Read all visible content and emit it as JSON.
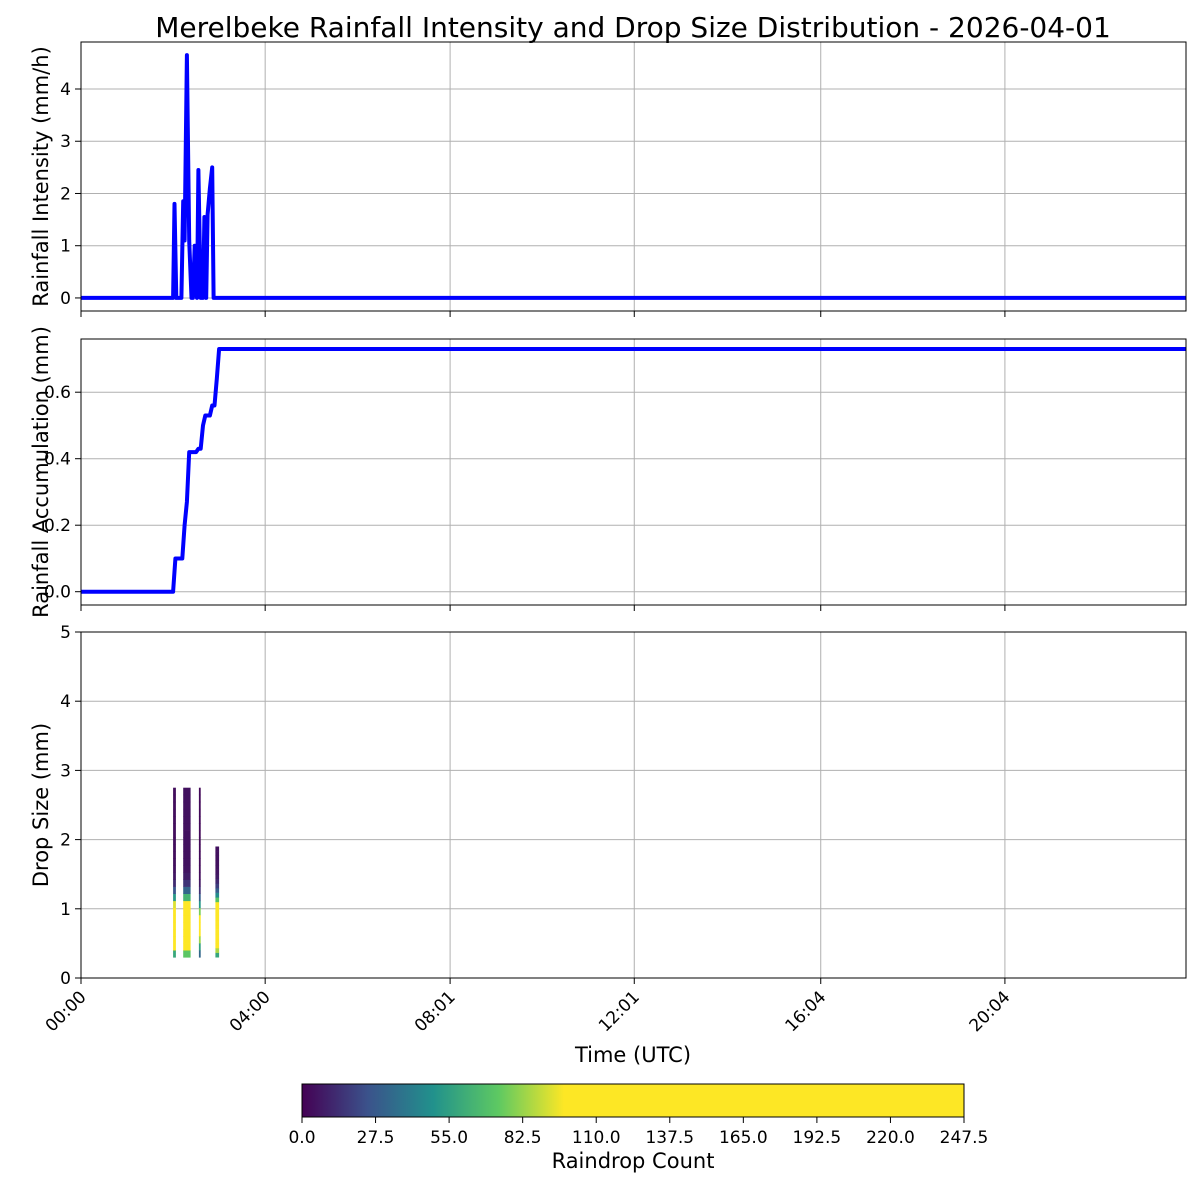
{
  "title": "Merelbeke Rainfall Intensity and Drop Size Distribution - 2026-04-01",
  "xlabel": "Time (UTC)",
  "x_ticks": [
    {
      "label": "00:00",
      "hour": 0
    },
    {
      "label": "04:00",
      "hour": 4
    },
    {
      "label": "08:01",
      "hour": 8.0167
    },
    {
      "label": "12:01",
      "hour": 12.0167
    },
    {
      "label": "16:04",
      "hour": 16.0667
    },
    {
      "label": "20:04",
      "hour": 20.0667
    }
  ],
  "colorbar": {
    "label": "Raindrop Count",
    "tick_labels": [
      "0.0",
      "27.5",
      "55.0",
      "82.5",
      "110.0",
      "137.5",
      "165.0",
      "192.5",
      "220.0",
      "247.5"
    ],
    "range": [
      0,
      247.5
    ],
    "colormap_stops": [
      "#440154",
      "#3b528b",
      "#21918c",
      "#5ec962",
      "#fde725"
    ],
    "saturates_at": 98
  },
  "chart_data": [
    {
      "type": "line",
      "ylabel": "Rainfall Intensity (mm/h)",
      "line_color": "#0000ff",
      "xlim_hours": [
        0,
        24
      ],
      "ylim": [
        -0.25,
        4.9
      ],
      "yticks": [
        "0",
        "1",
        "2",
        "3",
        "4"
      ],
      "grid": true,
      "x": [
        0,
        2.0,
        2.03,
        2.07,
        2.1,
        2.18,
        2.22,
        2.25,
        2.3,
        2.35,
        2.4,
        2.43,
        2.47,
        2.52,
        2.55,
        2.6,
        2.65,
        2.68,
        2.72,
        2.75,
        2.8,
        2.85,
        2.88,
        2.92,
        2.95,
        2.98,
        3.02,
        3.06,
        24
      ],
      "y": [
        0,
        0,
        1.8,
        0,
        0,
        0,
        1.85,
        1.1,
        4.65,
        1.1,
        0,
        0,
        1.0,
        0,
        2.45,
        0,
        0,
        1.55,
        0,
        1.6,
        2.1,
        2.5,
        0,
        0,
        0,
        0,
        0,
        0,
        0
      ]
    },
    {
      "type": "line",
      "ylabel": "Rainfall Accumulation (mm)",
      "line_color": "#0000ff",
      "xlim_hours": [
        0,
        24
      ],
      "ylim": [
        -0.04,
        0.76
      ],
      "yticks": [
        "0.0",
        "0.2",
        "0.4",
        "0.6"
      ],
      "grid": true,
      "x": [
        0,
        2.0,
        2.05,
        2.1,
        2.2,
        2.25,
        2.3,
        2.35,
        2.4,
        2.5,
        2.55,
        2.6,
        2.65,
        2.7,
        2.8,
        2.85,
        2.9,
        2.95,
        3.0,
        3.05,
        24
      ],
      "y": [
        0,
        0,
        0.1,
        0.1,
        0.1,
        0.2,
        0.27,
        0.42,
        0.42,
        0.42,
        0.43,
        0.43,
        0.5,
        0.53,
        0.53,
        0.56,
        0.56,
        0.64,
        0.73,
        0.73,
        0.73
      ]
    },
    {
      "type": "heatmap",
      "ylabel": "Drop Size (mm)",
      "xlim_hours": [
        0,
        24
      ],
      "ylim": [
        0,
        5
      ],
      "yticks": [
        "0",
        "1",
        "2",
        "3",
        "4",
        "5"
      ],
      "grid": true,
      "columns": [
        {
          "t0": 2.0,
          "t1": 2.06,
          "dmin": 0.3,
          "dmax": 2.75,
          "peak": 200
        },
        {
          "t0": 2.22,
          "t1": 2.38,
          "dmin": 0.3,
          "dmax": 2.75,
          "peak": 247
        },
        {
          "t0": 2.56,
          "t1": 2.6,
          "dmin": 0.3,
          "dmax": 2.75,
          "peak": 110
        },
        {
          "t0": 2.92,
          "t1": 3.0,
          "dmin": 0.3,
          "dmax": 1.9,
          "peak": 220
        }
      ]
    }
  ]
}
